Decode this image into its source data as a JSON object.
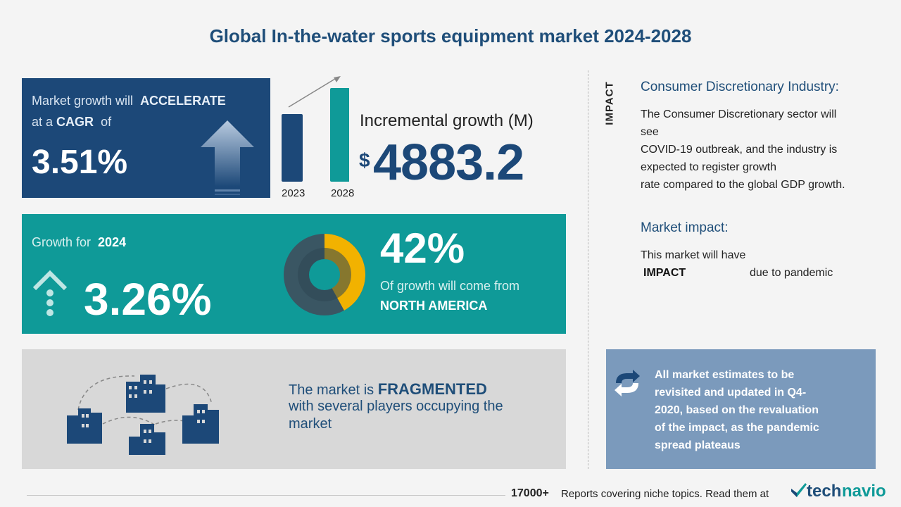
{
  "title": "Global In-the-water sports equipment market 2024-2028",
  "cagr": {
    "line1_prefix": "Market growth will",
    "line1_strong": "ACCELERATE",
    "line2_prefix": "at a",
    "line2_strong": "CAGR",
    "line2_suffix": "of",
    "value": "3.51%"
  },
  "incremental": {
    "label": "Incremental growth (M)",
    "currency": "$",
    "value": "4883.2",
    "year_start": "2023",
    "year_end": "2028"
  },
  "growth": {
    "label_prefix": "Growth for",
    "label_year": "2024",
    "value": "3.26%",
    "share_value": "42%",
    "share_text": "Of growth will come from",
    "share_region": "NORTH AMERICA",
    "share_fraction": 0.42
  },
  "fragmented": {
    "prefix": "The market is",
    "strong": "FRAGMENTED",
    "line2": "with several players occupying the",
    "line3": "market"
  },
  "impact": {
    "vertical_label": "IMPACT",
    "industry_title": "Consumer Discretionary Industry:",
    "industry_lines": [
      "The Consumer Discretionary sector will",
      "see",
      "COVID-19 outbreak, and the industry is",
      "expected to register  growth",
      "rate compared to the global GDP growth."
    ],
    "market_impact_title": "Market impact:",
    "market_impact_line": "This market will have",
    "market_impact_strong": "IMPACT",
    "market_impact_suffix": "due to pandemic"
  },
  "note": {
    "lines": [
      "All market estimates to be",
      "revisited and updated in Q4-",
      "2020, based on the revaluation",
      "of the impact, as the pandemic",
      "spread plateaus"
    ]
  },
  "footer": {
    "count": "17000+",
    "text": "Reports covering niche topics. Read them at",
    "logo_part1": "tech",
    "logo_part2": "navio"
  },
  "colors": {
    "navy": "#1c4878",
    "teal": "#0f9a98",
    "grey_panel": "#d8d8d8",
    "note_blue": "#7b9abc",
    "donut_highlight": "#f2b200"
  },
  "icons": [
    "up-arrow-icon",
    "growth-arrow-icon",
    "donut-chart-icon",
    "buildings-icon",
    "refresh-icon",
    "technavio-logo-icon"
  ]
}
